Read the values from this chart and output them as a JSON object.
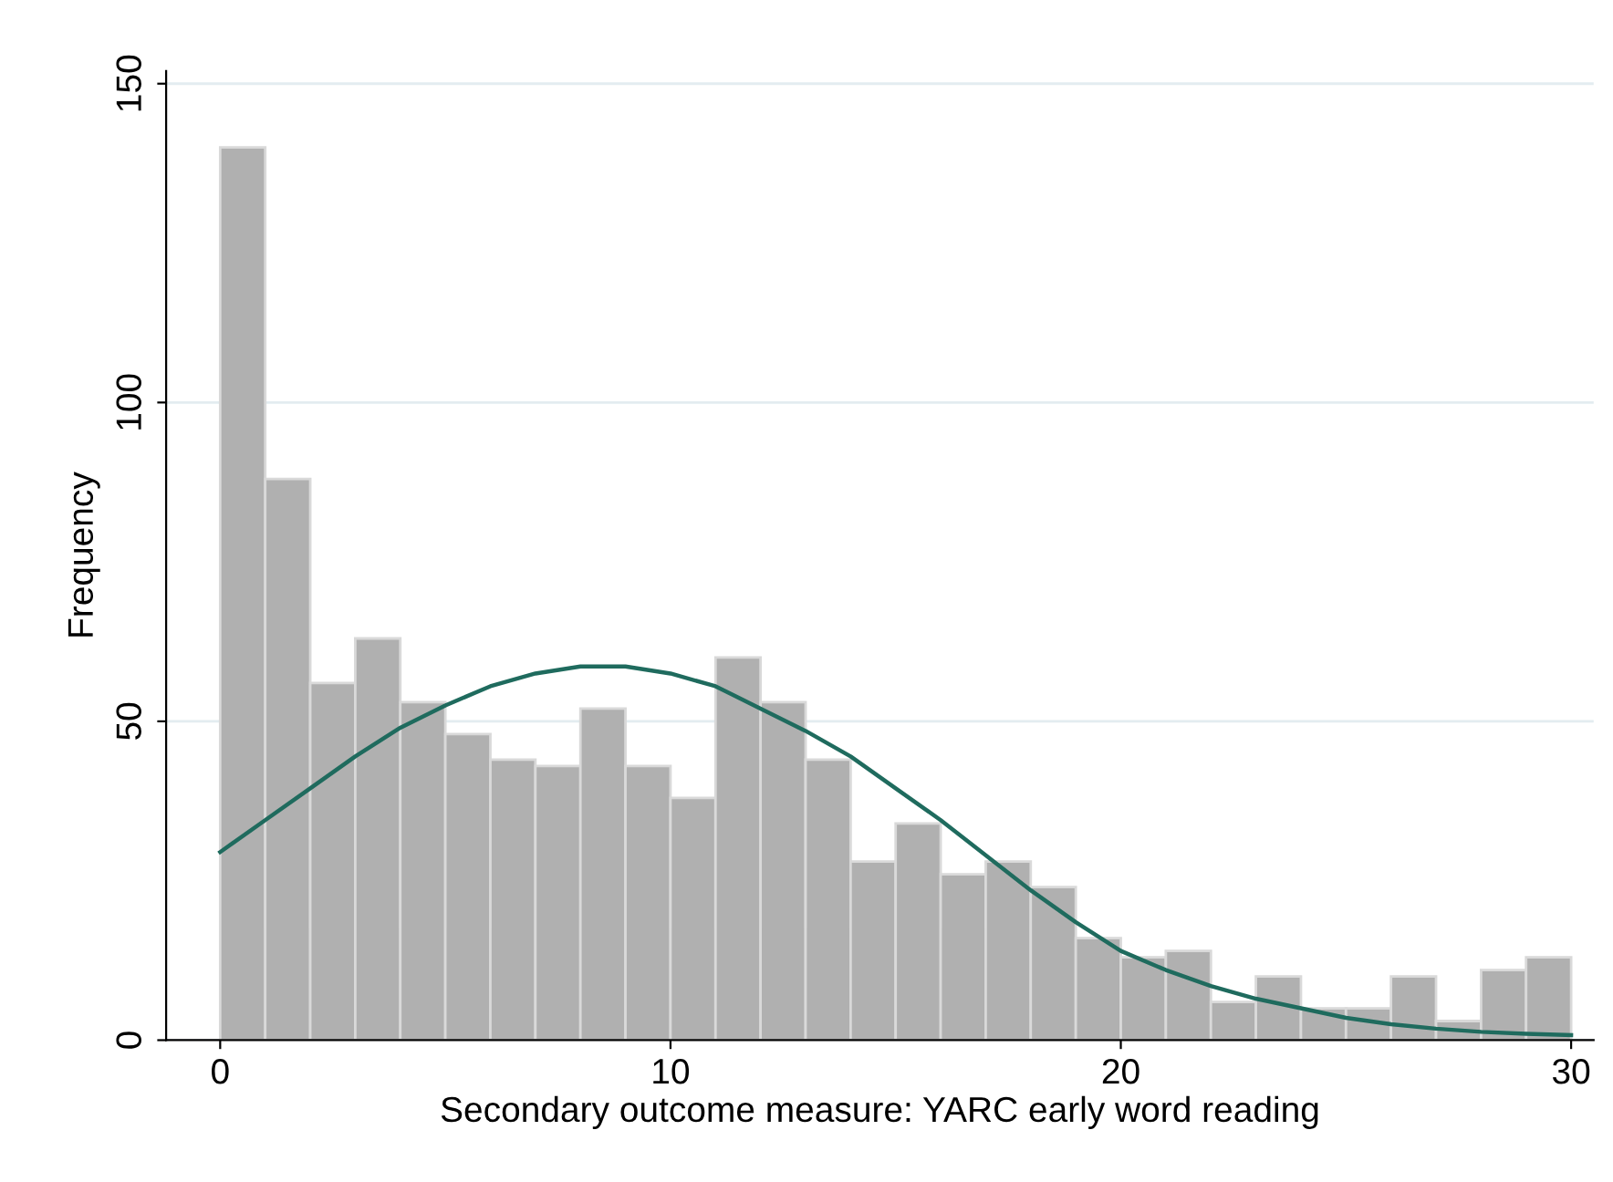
{
  "chart_data": {
    "type": "histogram",
    "xlabel": "Secondary outcome measure: YARC early word reading",
    "ylabel": "Frequency",
    "bins": [
      0,
      1,
      2,
      3,
      4,
      5,
      6,
      7,
      8,
      9,
      10,
      11,
      12,
      13,
      14,
      15,
      16,
      17,
      18,
      19,
      20,
      21,
      22,
      23,
      24,
      25,
      26,
      27,
      28,
      29,
      30
    ],
    "values": [
      140,
      88,
      56,
      63,
      53,
      48,
      44,
      43,
      52,
      43,
      38,
      60,
      53,
      44,
      28,
      34,
      26,
      28,
      24,
      16,
      13,
      14,
      6,
      10,
      5,
      5,
      10,
      3,
      11,
      13
    ],
    "color": "#b0b0b0",
    "series": [
      {
        "type": "line",
        "color": "#1f6b5e",
        "x": [
          0,
          1,
          2,
          3,
          4,
          5,
          6,
          7,
          8,
          9,
          10,
          11,
          12,
          13,
          14,
          15,
          16,
          17,
          18,
          19,
          20,
          21,
          22,
          23,
          24,
          25,
          26,
          27,
          28,
          29,
          30
        ],
        "values": [
          29.5,
          34.5,
          39.5,
          44.5,
          49,
          52.5,
          55.5,
          57.5,
          58.6,
          58.6,
          57.5,
          55.5,
          52,
          48.5,
          44.5,
          39.5,
          34.5,
          29,
          23.5,
          18.5,
          14,
          11,
          8.5,
          6.5,
          5,
          3.5,
          2.5,
          1.8,
          1.3,
          1.0,
          0.8
        ]
      }
    ],
    "xlim": [
      -1.2,
      30.5
    ],
    "ylim": [
      0,
      152
    ],
    "xticks": [
      0,
      10,
      20,
      30
    ],
    "yticks": [
      0,
      50,
      100,
      150
    ],
    "grid": "y",
    "legend": false
  }
}
